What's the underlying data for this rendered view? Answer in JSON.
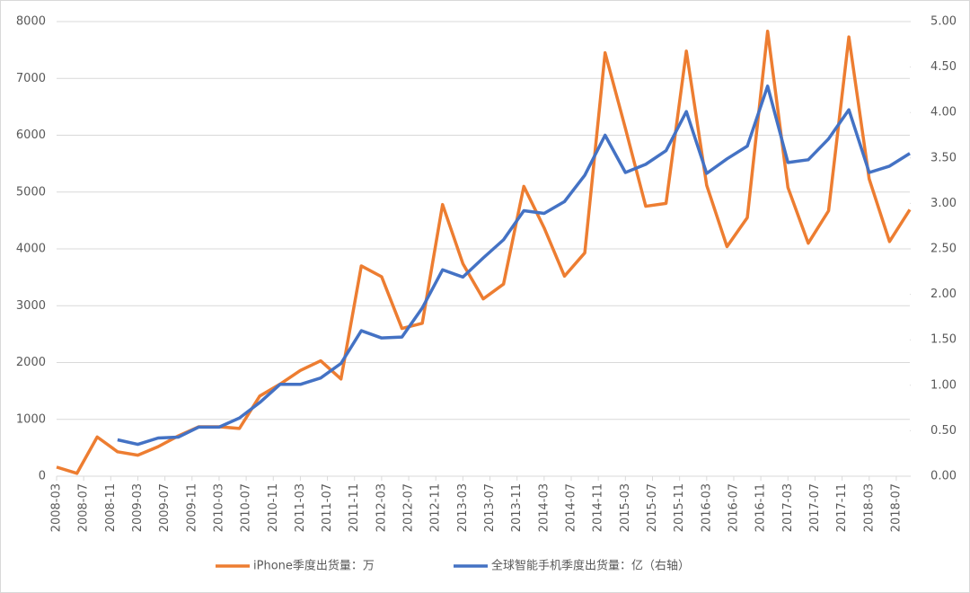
{
  "chart_data": {
    "type": "line",
    "x": [
      "2008-03",
      "2008-06",
      "2008-09",
      "2008-12",
      "2009-03",
      "2009-06",
      "2009-09",
      "2009-12",
      "2010-03",
      "2010-06",
      "2010-09",
      "2010-12",
      "2011-03",
      "2011-06",
      "2011-09",
      "2011-12",
      "2012-03",
      "2012-06",
      "2012-09",
      "2012-12",
      "2013-03",
      "2013-06",
      "2013-09",
      "2013-12",
      "2014-03",
      "2014-06",
      "2014-09",
      "2014-12",
      "2015-03",
      "2015-06",
      "2015-09",
      "2015-12",
      "2016-03",
      "2016-06",
      "2016-09",
      "2016-12",
      "2017-03",
      "2017-06",
      "2017-09",
      "2017-12",
      "2018-03",
      "2018-06",
      "2018-09"
    ],
    "xlim": [
      "2008-03",
      "2018-09"
    ],
    "xticks": [
      "2008-03",
      "2008-07",
      "2008-11",
      "2009-03",
      "2009-07",
      "2009-11",
      "2010-03",
      "2010-07",
      "2010-11",
      "2011-03",
      "2011-07",
      "2011-11",
      "2012-03",
      "2012-07",
      "2012-11",
      "2013-03",
      "2013-07",
      "2013-11",
      "2014-03",
      "2014-07",
      "2014-11",
      "2015-03",
      "2015-07",
      "2015-11",
      "2016-03",
      "2016-07",
      "2016-11",
      "2017-03",
      "2017-07",
      "2017-11",
      "2018-03",
      "2018-07"
    ],
    "ylim": [
      0,
      8000
    ],
    "yticks": [
      0,
      1000,
      2000,
      3000,
      4000,
      5000,
      6000,
      7000,
      8000
    ],
    "y2lim": [
      0,
      5
    ],
    "y2ticks": [
      {
        "value": 0,
        "label": "0.00"
      },
      {
        "value": 0.5,
        "label": "0.50"
      },
      {
        "value": 1,
        "label": "1.00"
      },
      {
        "value": 1.5,
        "label": "1.50"
      },
      {
        "value": 2,
        "label": "2.00"
      },
      {
        "value": 2.5,
        "label": "2.50"
      },
      {
        "value": 3,
        "label": "3.00"
      },
      {
        "value": 3.5,
        "label": "3.50"
      },
      {
        "value": 4,
        "label": "4.00"
      },
      {
        "value": 4.5,
        "label": "4.50"
      },
      {
        "value": 5,
        "label": "5.00"
      }
    ],
    "grid": true,
    "legend": "bottom",
    "series": [
      {
        "name": "iPhone季度出货量：万",
        "color": "#ed7d31",
        "values": [
          160,
          50,
          690,
          430,
          370,
          520,
          710,
          870,
          870,
          840,
          1410,
          1620,
          1860,
          2030,
          1710,
          3700,
          3510,
          2600,
          2690,
          4780,
          3740,
          3120,
          3380,
          5100,
          4370,
          3520,
          3930,
          7450,
          6120,
          4750,
          4800,
          7480,
          5120,
          4040,
          4550,
          7830,
          5080,
          4100,
          4670,
          7730,
          5230,
          4130,
          4690
        ]
      },
      {
        "name": "全球智能手机季度出货量：亿（右轴）",
        "color": "#4472c4",
        "axis": "y2",
        "values": [
          null,
          null,
          null,
          0.4,
          0.35,
          0.42,
          0.43,
          0.54,
          0.54,
          0.64,
          0.81,
          1.01,
          1.01,
          1.08,
          1.24,
          1.6,
          1.52,
          1.53,
          1.85,
          2.27,
          2.19,
          2.4,
          2.6,
          2.92,
          2.89,
          3.02,
          3.31,
          3.75,
          3.34,
          3.43,
          3.58,
          4.01,
          3.33,
          3.49,
          3.63,
          4.29,
          3.45,
          3.48,
          3.71,
          4.03,
          3.34,
          3.41,
          3.55
        ]
      }
    ]
  }
}
